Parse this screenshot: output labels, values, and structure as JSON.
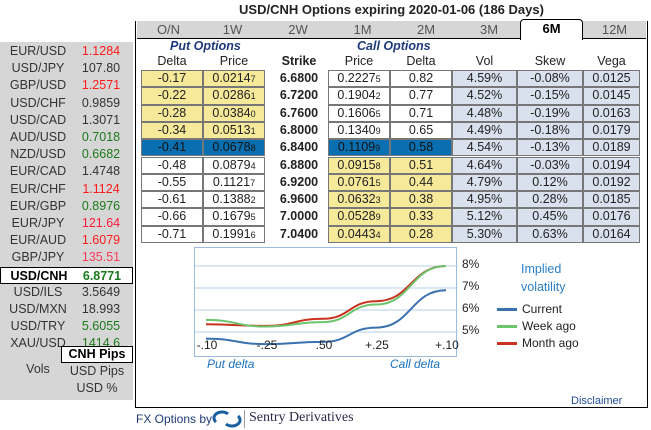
{
  "title": "USD/CNH Options expiring 2020-01-06 (186 Days)",
  "tabs": [
    "O/N",
    "1W",
    "2W",
    "1M",
    "2M",
    "3M",
    "6M",
    "12M"
  ],
  "active_tab": "6M",
  "sidebar": {
    "pairs": [
      {
        "name": "EUR/USD",
        "value": "1.1284",
        "color": "#ff1a1a"
      },
      {
        "name": "USD/JPY",
        "value": "107.80",
        "color": "#333333"
      },
      {
        "name": "GBP/USD",
        "value": "1.2571",
        "color": "#ff1a1a"
      },
      {
        "name": "USD/CHF",
        "value": "0.9859",
        "color": "#333333"
      },
      {
        "name": "USD/CAD",
        "value": "1.3071",
        "color": "#333333"
      },
      {
        "name": "AUD/USD",
        "value": "0.7018",
        "color": "#1a7a1a"
      },
      {
        "name": "NZD/USD",
        "value": "0.6682",
        "color": "#1a7a1a"
      },
      {
        "name": "EUR/CAD",
        "value": "1.4748",
        "color": "#333333"
      },
      {
        "name": "EUR/CHF",
        "value": "1.1124",
        "color": "#ff1a1a"
      },
      {
        "name": "EUR/GBP",
        "value": "0.8976",
        "color": "#1a7a1a"
      },
      {
        "name": "EUR/JPY",
        "value": "121.64",
        "color": "#ff1a3a"
      },
      {
        "name": "EUR/AUD",
        "value": "1.6079",
        "color": "#ff1a1a"
      },
      {
        "name": "GBP/JPY",
        "value": "135.51",
        "color": "#ff3a5a"
      },
      {
        "name": "USD/CNH",
        "value": "6.8771",
        "color": "#1a7a1a"
      },
      {
        "name": "USD/ILS",
        "value": "3.5649",
        "color": "#333333"
      },
      {
        "name": "USD/MXN",
        "value": "18.993",
        "color": "#333333"
      },
      {
        "name": "USD/TRY",
        "value": "5.6055",
        "color": "#1a7a1a"
      },
      {
        "name": "XAU/USD",
        "value": "1414.6",
        "color": "#1a7a1a"
      }
    ],
    "selected": "USD/CNH",
    "vols_label": "Vols",
    "units": [
      "CNH Pips",
      "USD Pips",
      "USD %"
    ],
    "selected_unit": "CNH Pips"
  },
  "table": {
    "put_label": "Put Options",
    "call_label": "Call Options",
    "headers": [
      "Delta",
      "Price",
      "Strike",
      "Price",
      "Delta",
      "Vol",
      "Skew",
      "Vega"
    ],
    "rows": [
      {
        "put_delta": "-0.17",
        "put_price": {
          "main": "0.0214",
          "pip": "7"
        },
        "strike": "6.6800",
        "call_price": {
          "main": "0.2227",
          "pip": "5"
        },
        "call_delta": "0.82",
        "vol": "4.59%",
        "skew": "-0.08%",
        "vega": "0.0125"
      },
      {
        "put_delta": "-0.22",
        "put_price": {
          "main": "0.0286",
          "pip": "1"
        },
        "strike": "6.7200",
        "call_price": {
          "main": "0.1904",
          "pip": "2"
        },
        "call_delta": "0.77",
        "vol": "4.52%",
        "skew": "-0.15%",
        "vega": "0.0145"
      },
      {
        "put_delta": "-0.28",
        "put_price": {
          "main": "0.0384",
          "pip": "0"
        },
        "strike": "6.7600",
        "call_price": {
          "main": "0.1606",
          "pip": "5"
        },
        "call_delta": "0.71",
        "vol": "4.48%",
        "skew": "-0.19%",
        "vega": "0.0163"
      },
      {
        "put_delta": "-0.34",
        "put_price": {
          "main": "0.0513",
          "pip": "1"
        },
        "strike": "6.8000",
        "call_price": {
          "main": "0.1340",
          "pip": "9"
        },
        "call_delta": "0.65",
        "vol": "4.49%",
        "skew": "-0.18%",
        "vega": "0.0179"
      },
      {
        "put_delta": "-0.41",
        "put_price": {
          "main": "0.0678",
          "pip": "8"
        },
        "strike": "6.8400",
        "call_price": {
          "main": "0.1109",
          "pip": "9"
        },
        "call_delta": "0.58",
        "vol": "4.54%",
        "skew": "-0.13%",
        "vega": "0.0189"
      },
      {
        "put_delta": "-0.48",
        "put_price": {
          "main": "0.0879",
          "pip": "4"
        },
        "strike": "6.8800",
        "call_price": {
          "main": "0.0915",
          "pip": "8"
        },
        "call_delta": "0.51",
        "vol": "4.64%",
        "skew": "-0.03%",
        "vega": "0.0194"
      },
      {
        "put_delta": "-0.55",
        "put_price": {
          "main": "0.1121",
          "pip": "7"
        },
        "strike": "6.9200",
        "call_price": {
          "main": "0.0761",
          "pip": "5"
        },
        "call_delta": "0.44",
        "vol": "4.79%",
        "skew": "0.12%",
        "vega": "0.0192"
      },
      {
        "put_delta": "-0.61",
        "put_price": {
          "main": "0.1388",
          "pip": "2"
        },
        "strike": "6.9600",
        "call_price": {
          "main": "0.0632",
          "pip": "3"
        },
        "call_delta": "0.38",
        "vol": "4.95%",
        "skew": "0.28%",
        "vega": "0.0185"
      },
      {
        "put_delta": "-0.66",
        "put_price": {
          "main": "0.1679",
          "pip": "5"
        },
        "strike": "7.0000",
        "call_price": {
          "main": "0.0528",
          "pip": "9"
        },
        "call_delta": "0.33",
        "vol": "5.12%",
        "skew": "0.45%",
        "vega": "0.0176"
      },
      {
        "put_delta": "-0.71",
        "put_price": {
          "main": "0.1991",
          "pip": "6"
        },
        "strike": "7.0400",
        "call_price": {
          "main": "0.0443",
          "pip": "4"
        },
        "call_delta": "0.28",
        "vol": "5.30%",
        "skew": "0.63%",
        "vega": "0.0164"
      }
    ],
    "atm_row": 4
  },
  "chart_data": {
    "type": "line",
    "categories": [
      "-.10",
      "-.25",
      ".50",
      "+.25",
      "+.10"
    ],
    "y_ticks": [
      "5%",
      "6%",
      "7%",
      "8%"
    ],
    "ylim": [
      4.4,
      8.2
    ],
    "title": "Implied volatility",
    "xlabel_left": "Put delta",
    "xlabel_right": "Call delta",
    "series": [
      {
        "name": "Current",
        "color": "#3a72b0",
        "values": [
          4.7,
          4.45,
          4.55,
          5.2,
          6.9
        ]
      },
      {
        "name": "Week ago",
        "color": "#6cc46c",
        "values": [
          5.55,
          5.25,
          5.45,
          6.25,
          8.0
        ]
      },
      {
        "name": "Month ago",
        "color": "#c8321e",
        "values": [
          5.35,
          5.28,
          5.6,
          6.4,
          8.0
        ]
      }
    ],
    "legend": "right"
  },
  "footer": {
    "disclaimer": "Disclaimer",
    "by": "FX Options by",
    "brand": "Sentry Derivatives"
  }
}
